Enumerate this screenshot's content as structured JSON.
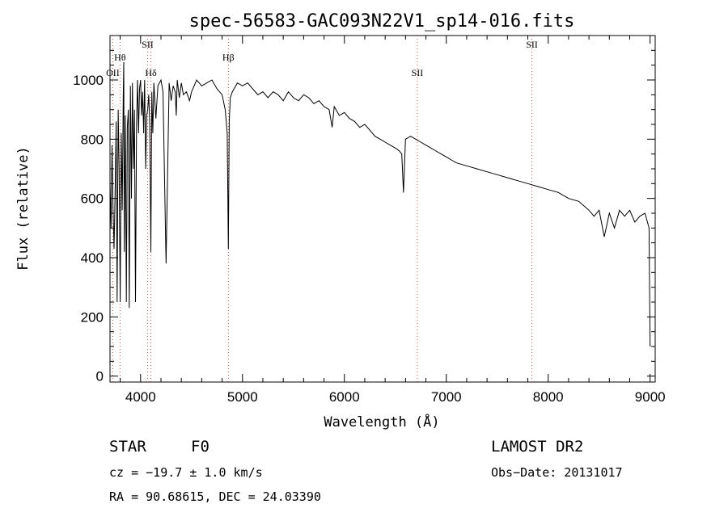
{
  "chart_data": {
    "type": "line",
    "title": "spec-56583-GAC093N22V1_sp14-016.fits",
    "xlabel": "Wavelength (Å)",
    "ylabel": "Flux (relative)",
    "xlim": [
      3700,
      9050
    ],
    "ylim": [
      -20,
      1150
    ],
    "xticks": [
      4000,
      5000,
      6000,
      7000,
      8000,
      9000
    ],
    "yticks": [
      0,
      200,
      400,
      600,
      800,
      1000
    ],
    "grid": false,
    "series": [
      {
        "x": [
          3700,
          3710,
          3720,
          3730,
          3740,
          3750,
          3760,
          3770,
          3780,
          3790,
          3800,
          3810,
          3820,
          3830,
          3835,
          3840,
          3850,
          3860,
          3870,
          3880,
          3889,
          3900,
          3910,
          3920,
          3930,
          3940,
          3950,
          3960,
          3970,
          3980,
          3990,
          4000,
          4010,
          4020,
          4030,
          4040,
          4050,
          4060,
          4070,
          4080,
          4090,
          4101,
          4110,
          4120,
          4130,
          4150,
          4170,
          4200,
          4220,
          4250,
          4280,
          4300,
          4320,
          4340,
          4350,
          4360,
          4380,
          4400,
          4420,
          4450,
          4480,
          4500,
          4550,
          4600,
          4650,
          4700,
          4750,
          4800,
          4830,
          4850,
          4861,
          4870,
          4880,
          4900,
          4950,
          5000,
          5050,
          5100,
          5150,
          5200,
          5250,
          5300,
          5350,
          5400,
          5450,
          5500,
          5550,
          5600,
          5650,
          5700,
          5750,
          5800,
          5850,
          5880,
          5900,
          5950,
          6000,
          6050,
          6100,
          6150,
          6200,
          6250,
          6300,
          6350,
          6400,
          6450,
          6500,
          6540,
          6563,
          6580,
          6600,
          6650,
          6700,
          6750,
          6800,
          6850,
          6900,
          6950,
          7000,
          7050,
          7100,
          7200,
          7300,
          7400,
          7500,
          7600,
          7700,
          7800,
          7900,
          8000,
          8100,
          8200,
          8300,
          8400,
          8450,
          8500,
          8550,
          8600,
          8650,
          8700,
          8750,
          8800,
          8850,
          8900,
          8950,
          8990,
          9000
        ],
        "y": [
          650,
          500,
          780,
          560,
          430,
          620,
          860,
          250,
          900,
          700,
          250,
          820,
          560,
          950,
          1060,
          420,
          880,
          250,
          840,
          900,
          230,
          980,
          600,
          990,
          700,
          900,
          250,
          850,
          1000,
          820,
          970,
          1000,
          880,
          960,
          820,
          1000,
          700,
          880,
          900,
          950,
          850,
          420,
          960,
          820,
          990,
          870,
          980,
          1000,
          960,
          380,
          990,
          930,
          980,
          960,
          880,
          1000,
          940,
          990,
          950,
          960,
          930,
          960,
          1000,
          980,
          990,
          1000,
          970,
          950,
          900,
          820,
          430,
          860,
          940,
          960,
          990,
          980,
          990,
          970,
          950,
          960,
          940,
          960,
          950,
          930,
          960,
          940,
          930,
          950,
          940,
          920,
          930,
          910,
          900,
          840,
          910,
          880,
          890,
          870,
          860,
          840,
          850,
          830,
          810,
          800,
          790,
          780,
          770,
          760,
          750,
          620,
          800,
          810,
          800,
          790,
          780,
          770,
          760,
          750,
          740,
          730,
          720,
          710,
          700,
          690,
          680,
          670,
          660,
          650,
          640,
          630,
          620,
          600,
          590,
          560,
          540,
          560,
          470,
          550,
          500,
          560,
          540,
          560,
          520,
          540,
          550,
          500,
          100
        ]
      }
    ],
    "annotations": [
      {
        "label": "OII",
        "x": 3727
      },
      {
        "label": "Hθ",
        "x": 3798
      },
      {
        "label": "SII",
        "x": 4069
      },
      {
        "label": "Hδ",
        "x": 4101
      },
      {
        "label": "Hβ",
        "x": 4861
      },
      {
        "label": "SII",
        "x": 6716
      },
      {
        "label": "SII",
        "x": 7840
      }
    ]
  },
  "info": {
    "class": "STAR",
    "subclass": "F0",
    "survey": "LAMOST DR2",
    "cz": "cz = −19.7 ± 1.0 km/s",
    "obsdate": "Obs−Date: 20131017",
    "coords": "RA =  90.68615, DEC =  24.03390"
  }
}
